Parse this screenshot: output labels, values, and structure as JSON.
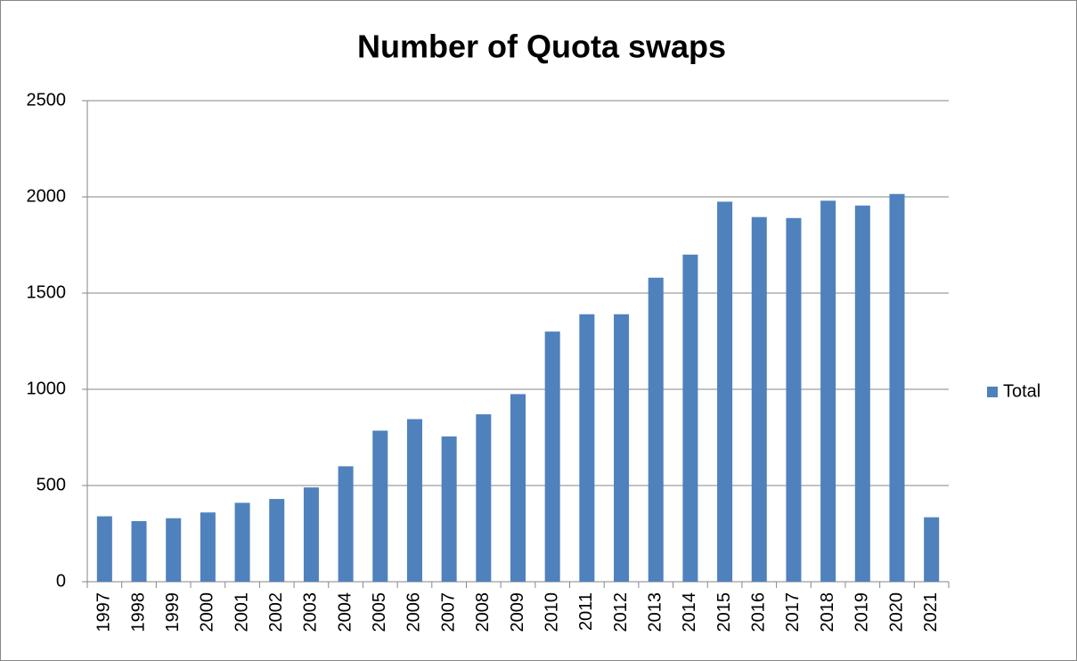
{
  "chart_data": {
    "type": "bar",
    "title": "Number of Quota swaps",
    "categories": [
      "1997",
      "1998",
      "1999",
      "2000",
      "2001",
      "2002",
      "2003",
      "2004",
      "2005",
      "2006",
      "2007",
      "2008",
      "2009",
      "2010",
      "2011",
      "2012",
      "2013",
      "2014",
      "2015",
      "2016",
      "2017",
      "2018",
      "2019",
      "2020",
      "2021"
    ],
    "series": [
      {
        "name": "Total",
        "color": "#4f81bd",
        "values": [
          340,
          315,
          330,
          360,
          410,
          430,
          490,
          600,
          785,
          845,
          755,
          870,
          975,
          1300,
          1390,
          1390,
          1580,
          1700,
          1975,
          1895,
          1890,
          1980,
          1955,
          2015,
          335
        ]
      }
    ],
    "ylim": [
      0,
      2500
    ],
    "yticks": [
      0,
      500,
      1000,
      1500,
      2000,
      2500
    ],
    "grid": true,
    "legend": "right"
  }
}
